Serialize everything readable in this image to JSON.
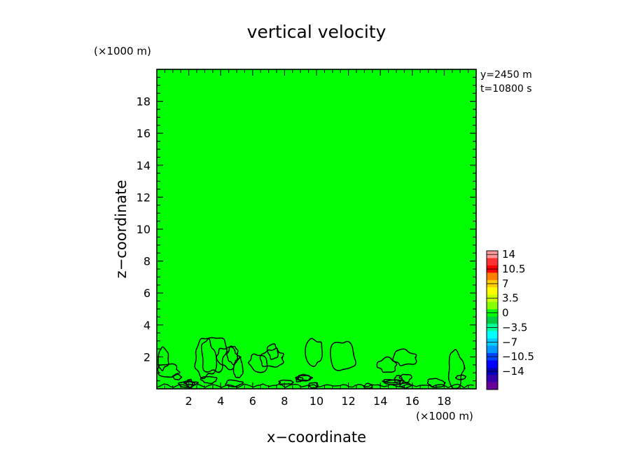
{
  "chart_data": {
    "type": "heatmap",
    "title": "vertical velocity",
    "xlabel": "x−coordinate",
    "ylabel": "z−coordinate",
    "x_unit": "(×1000 m)",
    "y_unit": "(×1000 m)",
    "xlim": [
      0,
      20
    ],
    "ylim": [
      0,
      20
    ],
    "x_ticks": [
      "2",
      "4",
      "6",
      "8",
      "10",
      "12",
      "14",
      "16",
      "18"
    ],
    "y_ticks": [
      "2",
      "4",
      "6",
      "8",
      "10",
      "12",
      "14",
      "16",
      "18"
    ],
    "info": [
      "y=2450 m",
      "t=10800 s"
    ],
    "field_value_dominant": 0,
    "field_color": "#00ff00",
    "contour_level": 0,
    "contour_region_max_z": 3.2,
    "colorbar": {
      "labels": [
        "14",
        "10.5",
        "7",
        "3.5",
        "0",
        "−3.5",
        "−7",
        "−10.5",
        "−14"
      ],
      "colors": [
        "#ff9999",
        "#ff3333",
        "#ff0000",
        "#ff7f00",
        "#ffcc00",
        "#ffff00",
        "#ccff00",
        "#88ff00",
        "#00ff00",
        "#00cc44",
        "#00ff99",
        "#00ffff",
        "#00ccff",
        "#0099ff",
        "#0044ff",
        "#0000ff",
        "#0000bb",
        "#3300aa",
        "#660099"
      ]
    }
  }
}
